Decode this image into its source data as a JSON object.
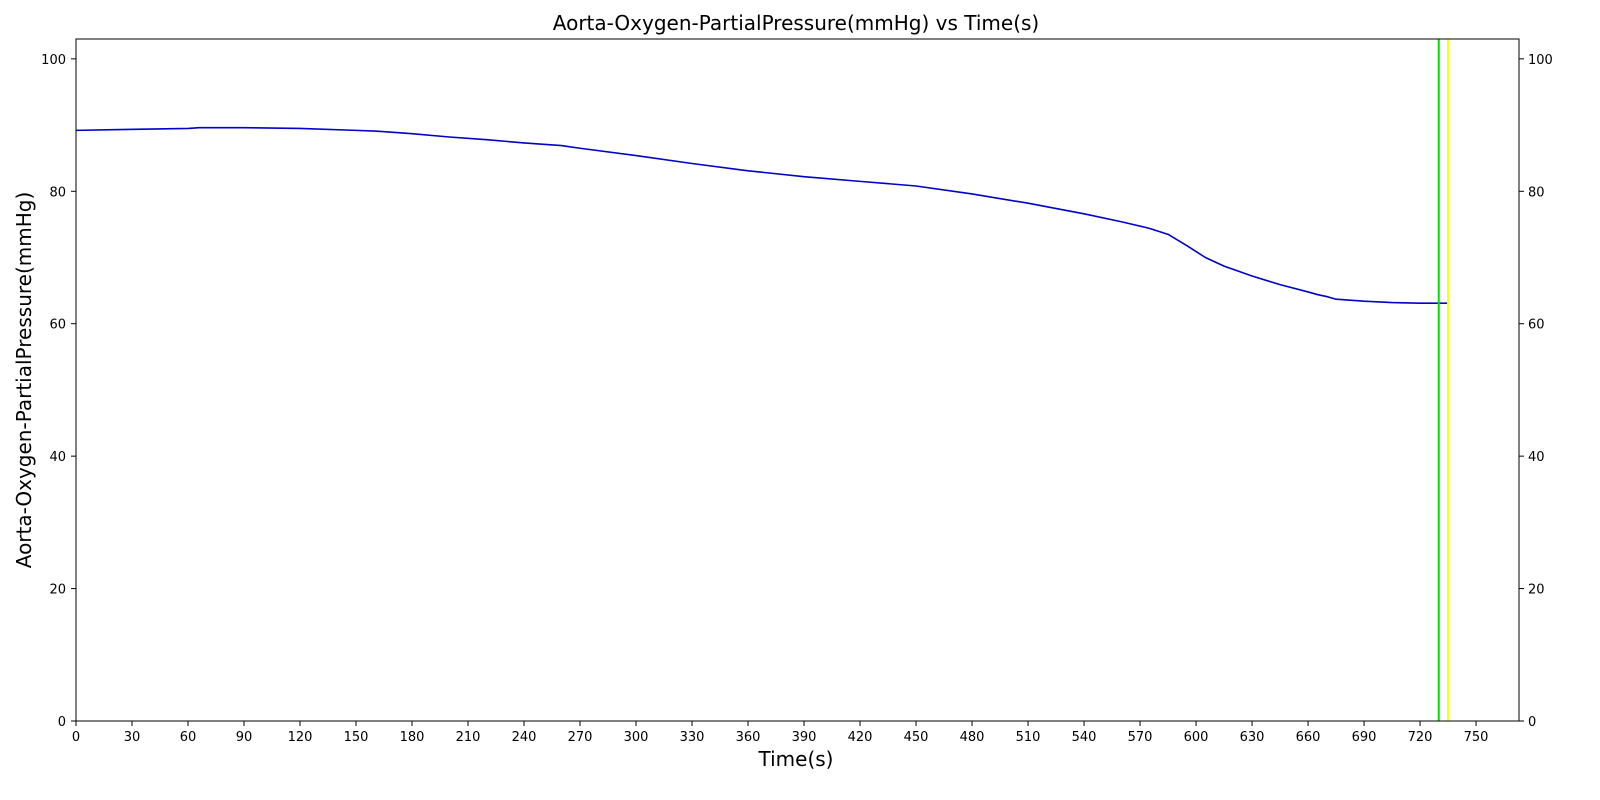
{
  "chart_data": {
    "type": "line",
    "title": "Aorta-Oxygen-PartialPressure(mmHg) vs Time(s)",
    "xlabel": "Time(s)",
    "ylabel": "Aorta-Oxygen-PartialPressure(mmHg)",
    "xlim": [
      0,
      773
    ],
    "ylim": [
      0,
      103
    ],
    "x_ticks": [
      0,
      30,
      60,
      90,
      120,
      150,
      180,
      210,
      240,
      270,
      300,
      330,
      360,
      390,
      420,
      450,
      480,
      510,
      540,
      570,
      600,
      630,
      660,
      690,
      720,
      750
    ],
    "y_ticks": [
      0,
      20,
      40,
      60,
      80,
      100
    ],
    "y_ticks_right": true,
    "grid": false,
    "series": [
      {
        "color": "#0000cc",
        "x": [
          0,
          20,
          40,
          60,
          66,
          90,
          120,
          150,
          160,
          180,
          200,
          220,
          240,
          260,
          270,
          300,
          330,
          360,
          390,
          420,
          450,
          480,
          510,
          540,
          560,
          575,
          585,
          595,
          605,
          615,
          630,
          645,
          660,
          665,
          670,
          675,
          690,
          705,
          720,
          735
        ],
        "y": [
          89.2,
          89.3,
          89.4,
          89.5,
          89.6,
          89.6,
          89.5,
          89.2,
          89.1,
          88.7,
          88.2,
          87.8,
          87.3,
          86.9,
          86.5,
          85.4,
          84.2,
          83.1,
          82.2,
          81.5,
          80.8,
          79.6,
          78.2,
          76.6,
          75.4,
          74.4,
          73.5,
          71.8,
          70.0,
          68.7,
          67.2,
          65.9,
          64.8,
          64.4,
          64.1,
          63.7,
          63.4,
          63.2,
          63.1,
          63.1
        ]
      }
    ],
    "markers": [
      {
        "x": 730,
        "color": "#00dd00"
      },
      {
        "x": 735,
        "color": "#ffff00"
      }
    ]
  }
}
